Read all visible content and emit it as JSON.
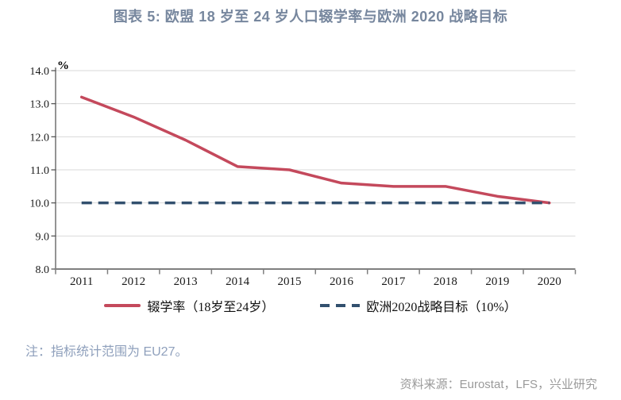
{
  "title": "图表 5: 欧盟 18 岁至 24 岁人口辍学率与欧洲 2020 战略目标",
  "chart_data": {
    "type": "line",
    "categories": [
      "2011",
      "2012",
      "2013",
      "2014",
      "2015",
      "2016",
      "2017",
      "2018",
      "2019",
      "2020"
    ],
    "series": [
      {
        "name": "辍学率（18岁至24岁）",
        "values": [
          13.2,
          12.6,
          11.9,
          11.1,
          11.0,
          10.6,
          10.5,
          10.5,
          10.2,
          10.0
        ],
        "color": "#C4495C",
        "style": "solid"
      },
      {
        "name": "欧洲2020战略目标（10%）",
        "values": [
          10.0,
          10.0,
          10.0,
          10.0,
          10.0,
          10.0,
          10.0,
          10.0,
          10.0,
          10.0
        ],
        "color": "#32506E",
        "style": "dashed"
      }
    ],
    "title": "图表 5: 欧盟 18 岁至 24 岁人口辍学率与欧洲 2020 战略目标",
    "xlabel": "",
    "ylabel": "%",
    "unit_label": "%",
    "ylim": [
      8.0,
      14.0
    ],
    "y_ticks": [
      "14.0",
      "13.0",
      "12.0",
      "11.0",
      "10.0",
      "9.0",
      "8.0"
    ],
    "grid": true,
    "legend_position": "bottom",
    "colors": {
      "grid": "#D9D9D9",
      "axis": "#7F7F7F",
      "y_axis": "#4D4D4D",
      "tick_label": "#1A1A1A"
    }
  },
  "note": "注：指标统计范围为 EU27。",
  "source": "资料来源：Eurostat，LFS，兴业研究"
}
